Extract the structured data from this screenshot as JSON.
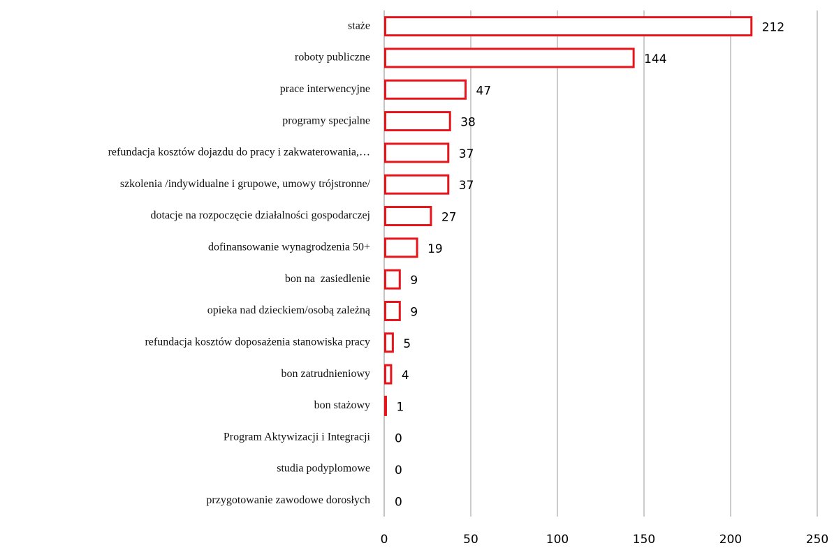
{
  "chart_data": {
    "type": "bar",
    "orientation": "horizontal",
    "categories": [
      "staże",
      "roboty publiczne",
      "prace interwencyjne",
      "programy specjalne",
      "refundacja kosztów dojazdu do pracy i zakwaterowania,…",
      "szkolenia /indywidualne i grupowe, umowy trójstronne/",
      "dotacje na rozpoczęcie działalności gospodarczej",
      "dofinansowanie wynagrodzenia 50+",
      "bon na  zasiedlenie",
      "opieka nad dzieckiem/osobą zależną",
      "refundacja kosztów doposażenia stanowiska pracy",
      "bon zatrudnieniowy",
      "bon stażowy",
      "Program Aktywizacji i Integracji",
      "studia podyplomowe",
      "przygotowanie zawodowe dorosłych"
    ],
    "values": [
      212,
      144,
      47,
      38,
      37,
      37,
      27,
      19,
      9,
      9,
      5,
      4,
      1,
      0,
      0,
      0
    ],
    "color": "#e8141b",
    "xlim": [
      0,
      250
    ],
    "xticks": [
      0,
      50,
      100,
      150,
      200,
      250
    ],
    "grid": true
  }
}
